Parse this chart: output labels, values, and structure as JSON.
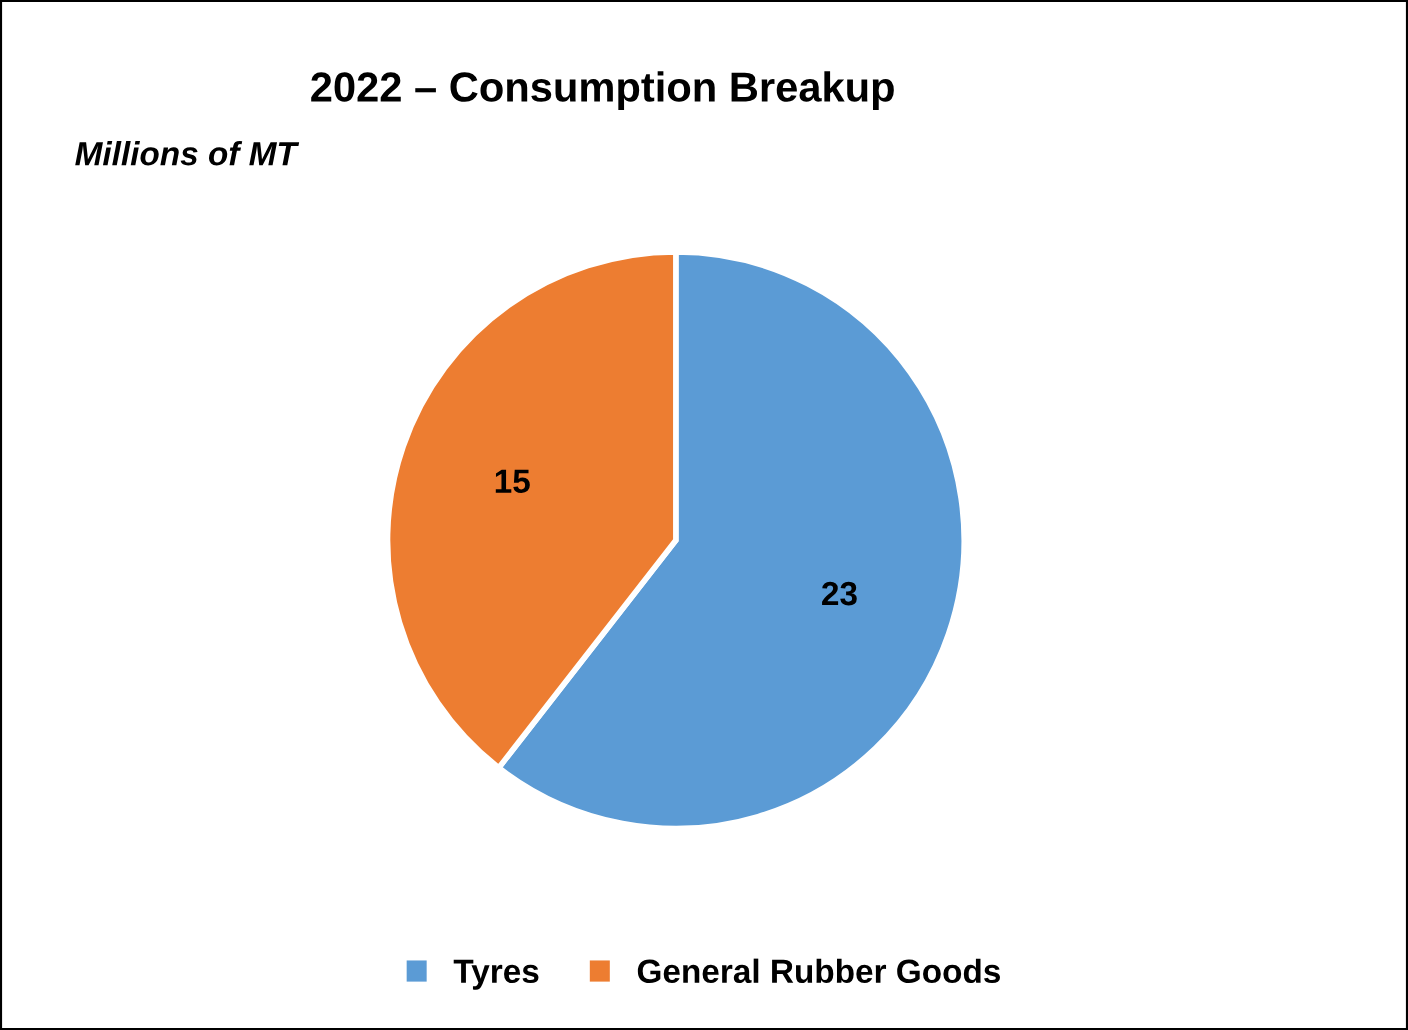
{
  "chart_data": {
    "type": "pie",
    "title": "2022 – Consumption Breakup",
    "subtitle": "Millions of MT",
    "categories": [
      "Tyres",
      "General Rubber Goods"
    ],
    "values": [
      23,
      15
    ],
    "colors": [
      "#5b9bd5",
      "#ed7d31"
    ],
    "data_labels": true,
    "legend": "bottom"
  }
}
